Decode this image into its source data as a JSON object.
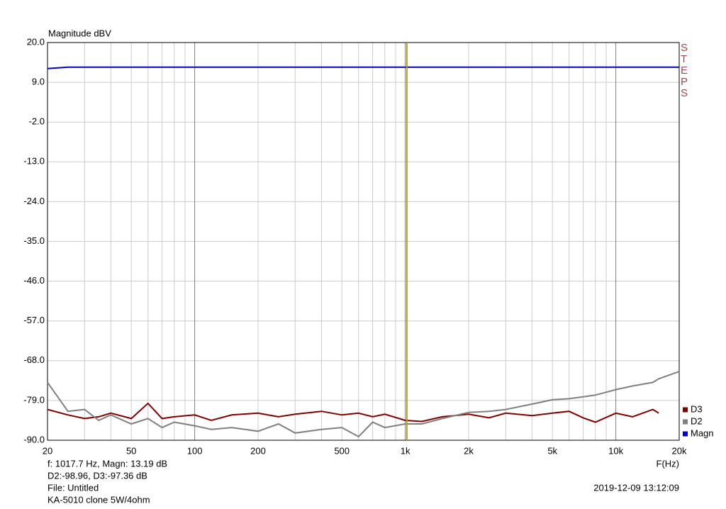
{
  "chart_data": {
    "type": "line",
    "title": "Magnitude dBV",
    "x_label": "F(Hz)",
    "side_label": "STEPS",
    "log_x": true,
    "grid": true,
    "xlim": [
      20,
      20000
    ],
    "xticks": [
      20,
      50,
      100,
      200,
      500,
      {
        "value": 1000,
        "label": "1k"
      },
      {
        "value": 2000,
        "label": "2k"
      },
      {
        "value": 5000,
        "label": "5k"
      },
      {
        "value": 10000,
        "label": "10k"
      },
      {
        "value": 20000,
        "label": "20k"
      }
    ],
    "xgrid_minor": [
      30,
      40,
      60,
      70,
      80,
      90,
      300,
      400,
      600,
      700,
      800,
      900,
      3000,
      4000,
      6000,
      7000,
      8000,
      9000
    ],
    "ylim": [
      -90,
      20
    ],
    "yticks": [
      {
        "value": 20,
        "label": "20.0"
      },
      {
        "value": 9,
        "label": "9.0"
      },
      {
        "value": -2,
        "label": "-2.0"
      },
      {
        "value": -13,
        "label": "-13.0"
      },
      {
        "value": -24,
        "label": "-24.0"
      },
      {
        "value": -35,
        "label": "-35.0"
      },
      {
        "value": -46,
        "label": "-46.0"
      },
      {
        "value": -57,
        "label": "-57.0"
      },
      {
        "value": -68,
        "label": "-68.0"
      },
      {
        "value": -79,
        "label": "-79.0"
      },
      {
        "value": -90,
        "label": "-90.0"
      }
    ],
    "cursor_x": 1017.7,
    "cursor_color": "#b0a020",
    "legend": "bottom-right",
    "x": [
      20,
      25,
      30,
      35,
      40,
      50,
      60,
      70,
      80,
      100,
      120,
      150,
      200,
      250,
      300,
      400,
      500,
      600,
      700,
      800,
      1000,
      1200,
      1500,
      2000,
      2500,
      3000,
      4000,
      5000,
      6000,
      7000,
      8000,
      10000,
      12000,
      15000,
      16000,
      20000
    ],
    "series": [
      {
        "name": "D3",
        "color": "#800000",
        "values": [
          -81.5,
          -83,
          -84,
          -83.5,
          -82.5,
          -84,
          -79.8,
          -84,
          -83.5,
          -83,
          -84.5,
          -83,
          -82.5,
          -83.5,
          -82.8,
          -82,
          -83,
          -82.5,
          -83.5,
          -82.8,
          -84.5,
          -84.8,
          -83.5,
          -82.8,
          -83.8,
          -82.5,
          -83.2,
          -82.5,
          -82,
          -83.8,
          -85,
          -82.5,
          -83.5,
          -81.5,
          -82.5,
          null
        ]
      },
      {
        "name": "D2",
        "color": "#808080",
        "values": [
          -74,
          -82,
          -81.5,
          -84.5,
          -83,
          -85.5,
          -84,
          -86.5,
          -85,
          -86,
          -87,
          -86.5,
          -87.5,
          -85.5,
          -88,
          -87,
          -86.5,
          -89,
          -85,
          -86.5,
          -85.5,
          -85.5,
          -84,
          -82.3,
          -82,
          -81.5,
          -80,
          -78.8,
          -78.5,
          -78,
          -77.5,
          -76,
          -75,
          -74,
          -73,
          -71
        ]
      },
      {
        "name": "Magn",
        "color": "#0000c0",
        "values": [
          12.8,
          13.19,
          13.19,
          13.19,
          13.19,
          13.19,
          13.19,
          13.19,
          13.19,
          13.19,
          13.19,
          13.19,
          13.19,
          13.19,
          13.19,
          13.19,
          13.19,
          13.19,
          13.19,
          13.19,
          13.19,
          13.19,
          13.19,
          13.19,
          13.19,
          13.19,
          13.19,
          13.19,
          13.19,
          13.19,
          13.19,
          13.19,
          13.19,
          13.19,
          13.19,
          13.19
        ]
      }
    ],
    "annotations": [
      "f: 1017.7 Hz, Magn: 13.19 dB",
      "D2:-98.96, D3:-97.36 dB",
      "File: Untitled",
      "KA-5010 clone 5W/4ohm"
    ],
    "timestamp": "2019-12-09 13:12:09"
  }
}
